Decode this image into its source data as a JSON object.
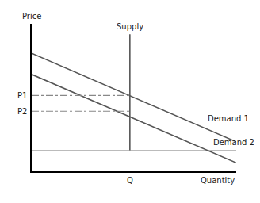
{
  "chart_data": {
    "type": "line",
    "xlabel": "Quantity",
    "ylabel": "Price",
    "xlim": [
      0,
      1
    ],
    "ylim": [
      -0.2,
      1.2
    ],
    "tick_labels": false,
    "grid": false,
    "series": [
      {
        "name": "Demand 1",
        "x": [
          0.0,
          1.0
        ],
        "values": [
          0.92,
          0.08
        ],
        "color": "#555555"
      },
      {
        "name": "Demand 2",
        "x": [
          0.0,
          1.0
        ],
        "values": [
          0.72,
          -0.12
        ],
        "color": "#555555"
      },
      {
        "name": "Supply",
        "x": [
          0.48,
          0.48
        ],
        "values": [
          0,
          1.1
        ],
        "color": "#555555"
      },
      {
        "x": [
          0,
          0.48
        ],
        "values": [
          0.52,
          0.52
        ],
        "color": "#888888",
        "line_style": "dashdot"
      },
      {
        "x": [
          0,
          0.48
        ],
        "values": [
          0.37,
          0.37
        ],
        "color": "#888888",
        "line_style": "dashdot"
      }
    ],
    "annotations": [
      {
        "text": "Q",
        "x": 0.48
      },
      {
        "text": "P1",
        "y": 0.52
      },
      {
        "text": "P2",
        "y": 0.37
      }
    ]
  }
}
